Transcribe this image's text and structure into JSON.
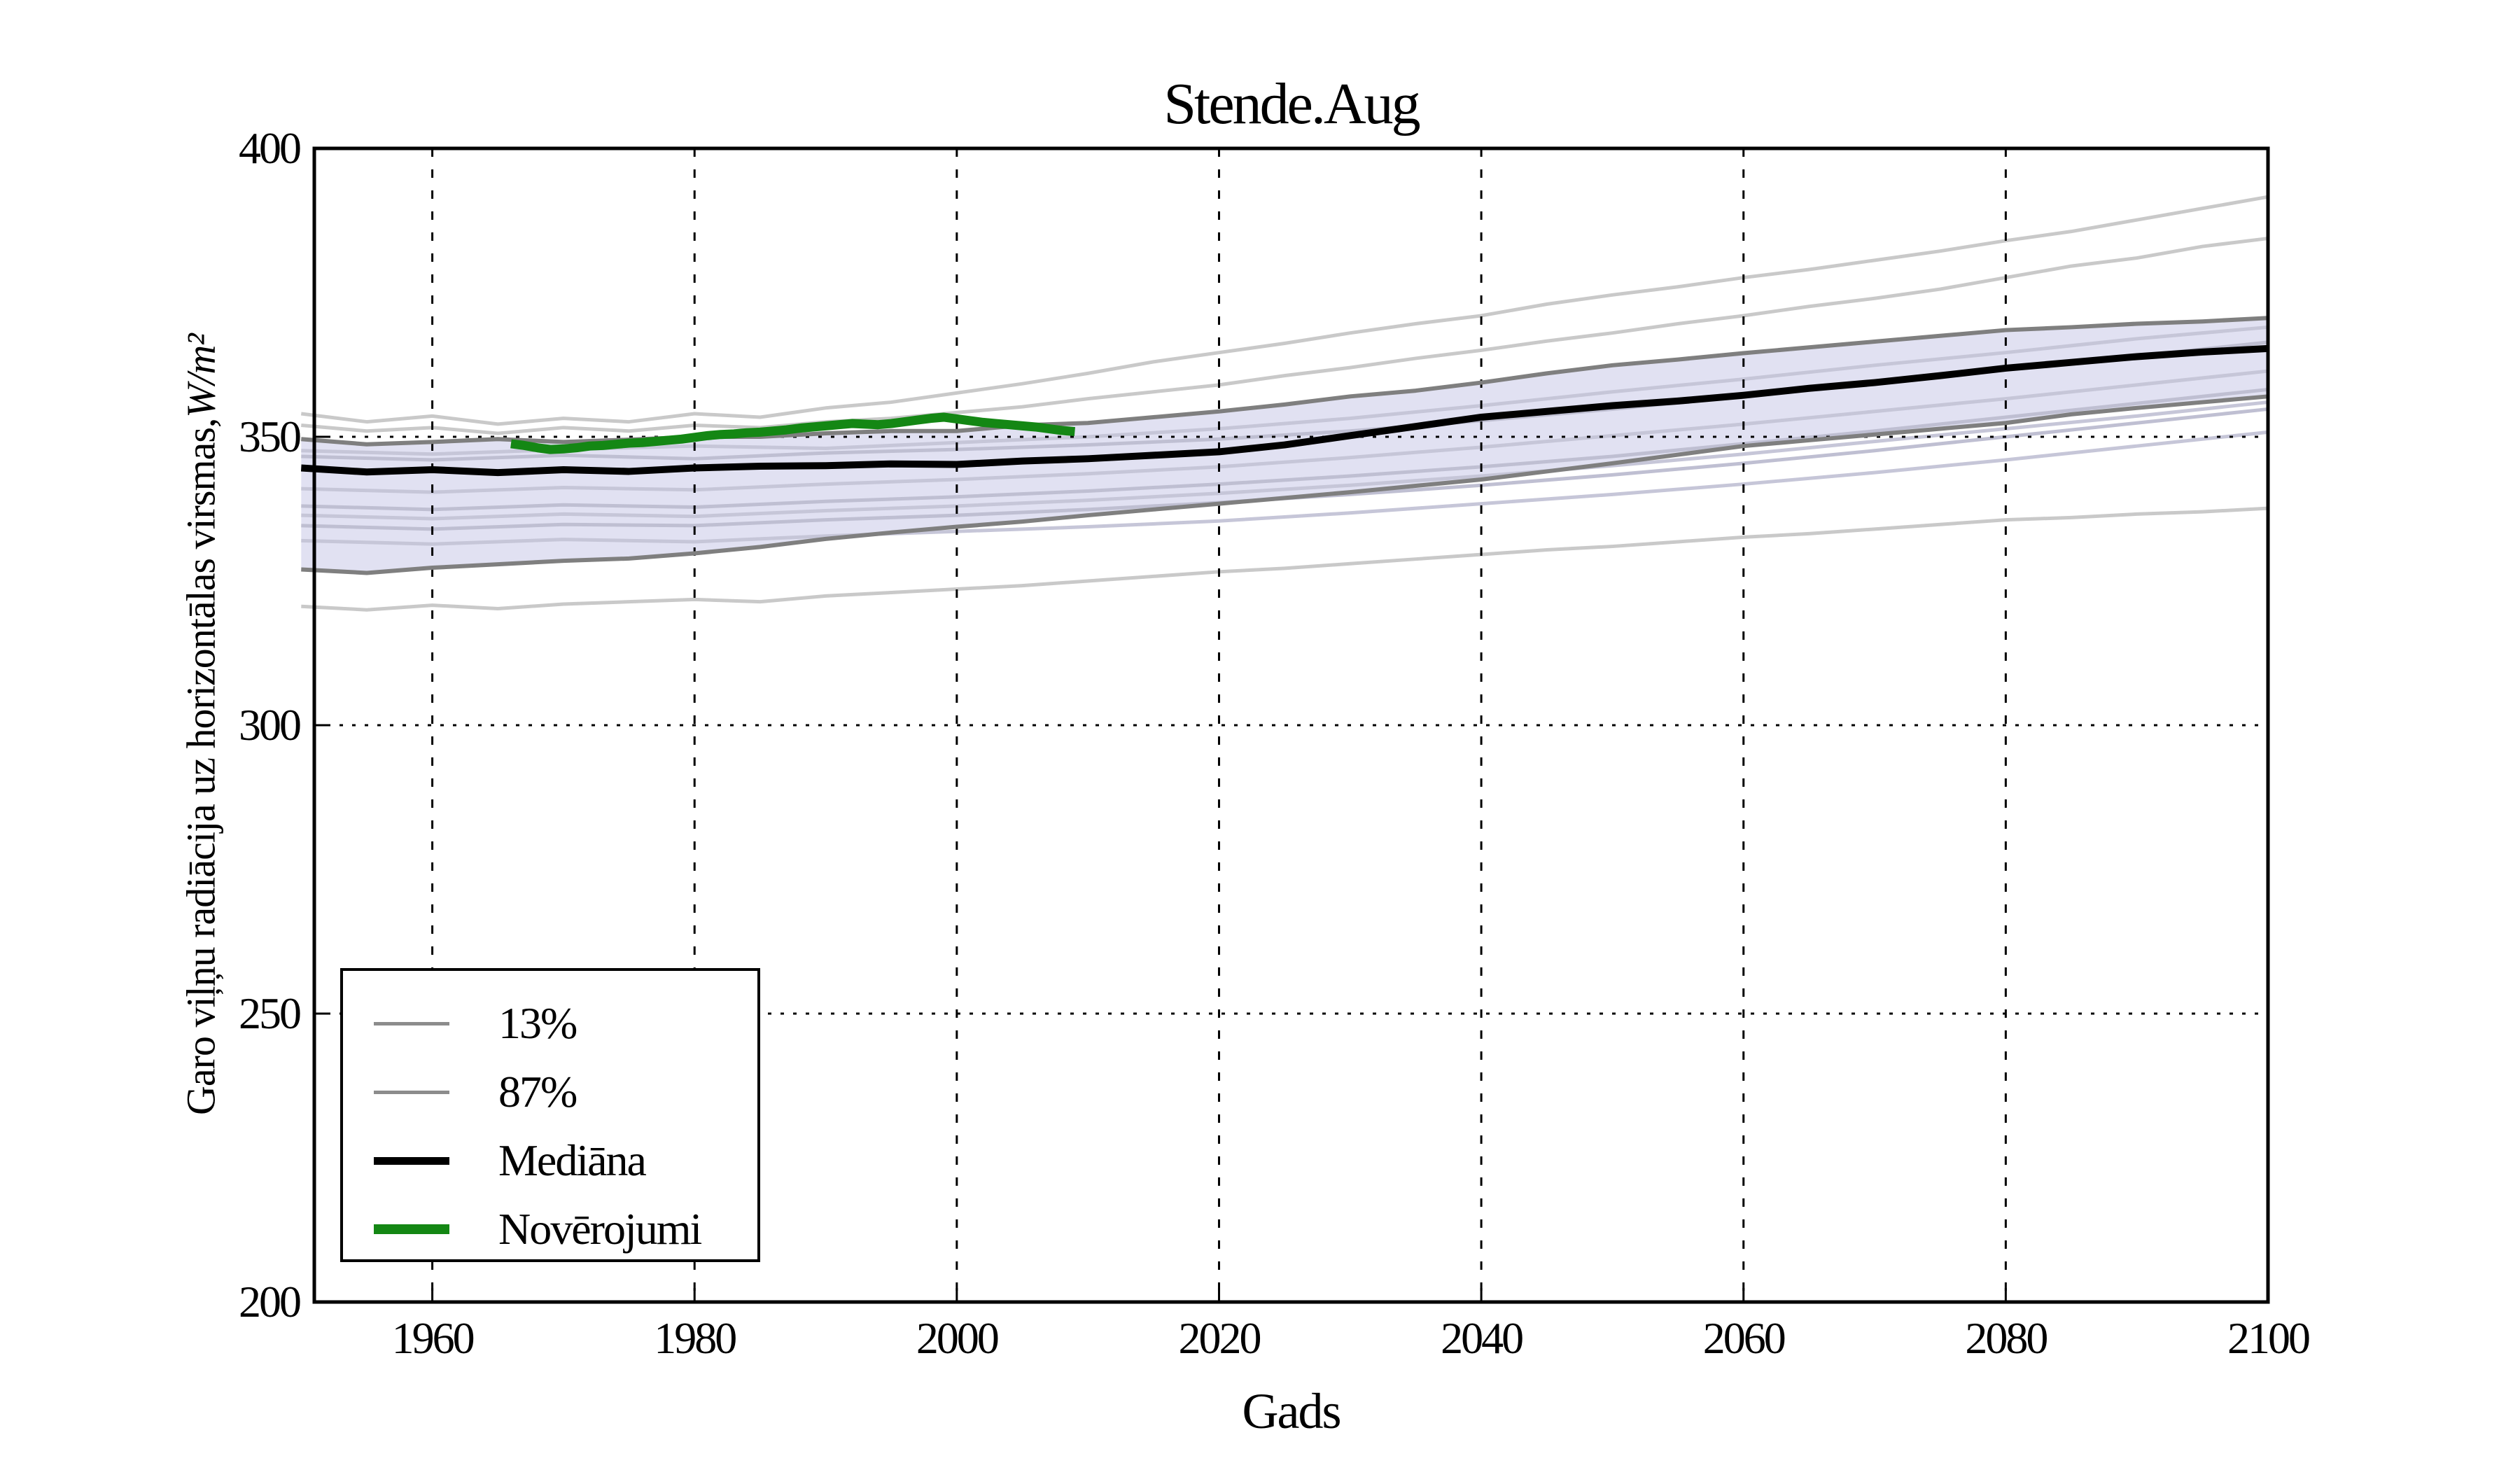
{
  "title": "Stende.Aug",
  "axes": {
    "xlabel": "Gads",
    "ylabel_text": "Garo viļņu radiācija uz horizontālas virsmas, ",
    "ylabel_unit": "W/m²",
    "x_ticks": [
      "1960",
      "1980",
      "2000",
      "2020",
      "2040",
      "2060",
      "2080",
      "2100"
    ],
    "y_ticks": [
      "200",
      "250",
      "300",
      "350",
      "400"
    ],
    "x_gridline_years": [
      1960,
      1980,
      2000,
      2020,
      2040,
      2060,
      2080,
      2100
    ],
    "y_gridline_values": [
      250,
      300,
      350
    ]
  },
  "legend": {
    "items": [
      {
        "label": "13%",
        "color": "#8c8c8c",
        "thickness": 5
      },
      {
        "label": "87%",
        "color": "#8c8c8c",
        "thickness": 5
      },
      {
        "label": "Mediāna",
        "color": "#000000",
        "thickness": 11
      },
      {
        "label": "Novērojumi",
        "color": "#148714",
        "thickness": 14
      }
    ]
  },
  "chart_data": {
    "type": "line",
    "title": "Stende.Aug",
    "xlabel": "Gads",
    "ylabel": "Garo viļņu radiācija uz horizontālas virsmas, W/m²",
    "xlim": [
      1951,
      2100
    ],
    "ylim": [
      200,
      400
    ],
    "grid": "dotted",
    "legend_position": "lower-left",
    "colors": {
      "band_fill": "#e1e1f2",
      "band_edge": "#7f7f7f",
      "median": "#000000",
      "observations": "#148714",
      "ensemble_out": "#c9c9c9",
      "ensemble_in": [
        "#c6c6d8",
        "#bfbfd2"
      ],
      "grid": "#000000",
      "frame": "#000000"
    },
    "years5": [
      1950,
      1955,
      1960,
      1965,
      1970,
      1975,
      1980,
      1985,
      1990,
      1995,
      2000,
      2005,
      2010,
      2015,
      2020,
      2025,
      2030,
      2035,
      2040,
      2045,
      2050,
      2055,
      2060,
      2065,
      2070,
      2075,
      2080,
      2085,
      2090,
      2095,
      2100
    ],
    "years10": [
      1950,
      1960,
      1970,
      1980,
      1990,
      2000,
      2010,
      2020,
      2030,
      2040,
      2050,
      2060,
      2070,
      2080,
      2090,
      2100
    ],
    "band": {
      "name": "13-87% percentile range",
      "p13": [
        327.0,
        326.4,
        327.3,
        327.9,
        328.5,
        328.9,
        329.8,
        330.9,
        332.3,
        333.4,
        334.4,
        335.3,
        336.4,
        337.4,
        338.4,
        339.4,
        340.4,
        341.5,
        342.6,
        344.0,
        345.4,
        346.9,
        348.4,
        349.4,
        350.4,
        351.4,
        352.4,
        353.9,
        355.0,
        356.0,
        357.0
      ],
      "p87": [
        349.6,
        348.7,
        349.1,
        349.6,
        349.1,
        349.5,
        350.0,
        350.0,
        350.6,
        351.0,
        351.0,
        352.0,
        352.4,
        353.4,
        354.4,
        355.6,
        357.0,
        358.0,
        359.4,
        361.0,
        362.4,
        363.4,
        364.5,
        365.5,
        366.5,
        367.5,
        368.5,
        369.0,
        369.6,
        370.0,
        370.6
      ]
    },
    "median": {
      "name": "Mediāna",
      "values": [
        344.6,
        343.9,
        344.3,
        343.8,
        344.3,
        344.0,
        344.6,
        344.9,
        345.0,
        345.3,
        345.2,
        345.8,
        346.2,
        346.8,
        347.4,
        348.6,
        350.2,
        351.8,
        353.4,
        354.4,
        355.4,
        356.2,
        357.2,
        358.4,
        359.4,
        360.6,
        361.9,
        362.9,
        363.9,
        364.7,
        365.3
      ]
    },
    "observations": {
      "name": "Novērojumi",
      "years": [
        1966,
        1967,
        1968,
        1969,
        1970,
        1971,
        1972,
        1973,
        1974,
        1975,
        1976,
        1977,
        1978,
        1979,
        1980,
        1981,
        1982,
        1983,
        1984,
        1985,
        1986,
        1987,
        1988,
        1989,
        1990,
        1991,
        1992,
        1993,
        1994,
        1995,
        1996,
        1997,
        1998,
        1999,
        2000,
        2001,
        2002,
        2003,
        2004,
        2005,
        2006,
        2007,
        2008,
        2009
      ],
      "values": [
        348.8,
        348.5,
        348.1,
        347.8,
        347.9,
        348.1,
        348.4,
        348.5,
        348.7,
        348.9,
        349.0,
        349.2,
        349.4,
        349.6,
        349.9,
        350.2,
        350.4,
        350.5,
        350.7,
        350.8,
        351.0,
        351.2,
        351.5,
        351.7,
        351.9,
        352.1,
        352.3,
        352.2,
        352.1,
        352.3,
        352.6,
        352.9,
        353.2,
        353.4,
        353.1,
        352.8,
        352.5,
        352.3,
        352.1,
        351.9,
        351.7,
        351.4,
        351.1,
        350.9
      ]
    },
    "ensemble_outside_band": [
      {
        "name": "ensemble member high 1",
        "values": [
          354.0,
          352.6,
          353.6,
          352.2,
          353.2,
          352.6,
          354.0,
          353.4,
          355.0,
          356.0,
          357.6,
          359.2,
          361.0,
          363.0,
          364.6,
          366.2,
          368.0,
          369.6,
          371.0,
          373.0,
          374.6,
          376.0,
          377.6,
          379.0,
          380.6,
          382.2,
          384.0,
          385.6,
          387.6,
          389.6,
          391.6
        ]
      },
      {
        "name": "ensemble member high 2",
        "values": [
          352.0,
          351.0,
          351.6,
          350.6,
          351.6,
          351.0,
          352.0,
          351.6,
          352.6,
          353.2,
          354.2,
          355.2,
          356.6,
          357.8,
          359.0,
          360.6,
          362.0,
          363.6,
          365.0,
          366.6,
          368.0,
          369.6,
          371.0,
          372.6,
          374.0,
          375.6,
          377.6,
          379.6,
          381.0,
          383.0,
          384.4
        ]
      },
      {
        "name": "ensemble member low",
        "values": [
          320.6,
          320.0,
          320.8,
          320.2,
          321.0,
          321.4,
          321.8,
          321.4,
          322.4,
          323.0,
          323.6,
          324.2,
          325.0,
          325.8,
          326.6,
          327.2,
          328.0,
          328.8,
          329.6,
          330.4,
          331.0,
          331.8,
          332.6,
          333.2,
          334.0,
          334.8,
          335.6,
          336.0,
          336.6,
          337.0,
          337.6
        ]
      }
    ],
    "ensemble_inside_band": [
      {
        "name": "ensemble member",
        "values": [
          347.6,
          347.0,
          347.8,
          348.4,
          348.0,
          349.0,
          350.0,
          351.4,
          353.2,
          355.4,
          357.8,
          360.0,
          362.4,
          364.6,
          367.0,
          369.0
        ]
      },
      {
        "name": "ensemble member",
        "values": [
          346.6,
          346.0,
          346.8,
          346.2,
          347.2,
          347.8,
          348.6,
          349.6,
          351.0,
          352.8,
          354.8,
          357.0,
          359.4,
          361.6,
          364.0,
          366.4
        ]
      },
      {
        "name": "ensemble member",
        "values": [
          341.0,
          340.4,
          341.2,
          340.8,
          341.8,
          342.6,
          343.6,
          344.8,
          346.4,
          348.2,
          350.2,
          352.2,
          354.4,
          356.6,
          359.0,
          361.4
        ]
      },
      {
        "name": "ensemble member",
        "values": [
          338.0,
          337.4,
          338.2,
          337.8,
          338.8,
          339.6,
          340.6,
          341.8,
          343.2,
          344.8,
          346.6,
          348.8,
          351.0,
          353.4,
          355.8,
          358.2
        ]
      },
      {
        "name": "ensemble member",
        "values": [
          336.4,
          335.8,
          336.6,
          336.2,
          337.2,
          338.0,
          339.0,
          340.2,
          341.6,
          343.2,
          345.0,
          347.0,
          349.2,
          351.4,
          353.6,
          356.0
        ]
      },
      {
        "name": "ensemble member",
        "values": [
          334.6,
          334.0,
          334.8,
          334.6,
          335.6,
          336.4,
          337.4,
          338.6,
          340.0,
          341.6,
          343.4,
          345.4,
          347.6,
          350.0,
          352.4,
          354.8
        ]
      },
      {
        "name": "ensemble member",
        "values": [
          332.0,
          331.4,
          332.2,
          331.8,
          332.8,
          333.6,
          334.4,
          335.4,
          336.8,
          338.4,
          340.0,
          341.8,
          343.8,
          346.0,
          348.4,
          350.8
        ]
      }
    ]
  }
}
